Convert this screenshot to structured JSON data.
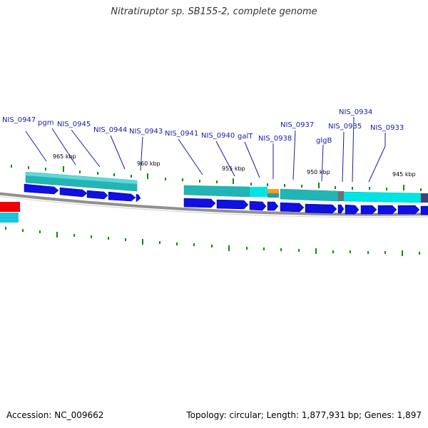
{
  "title": "Nitratiruptor sp. SB155-2, complete genome",
  "footer": {
    "accession": "Accession: NC_009662",
    "summary": "Topology: circular; Length: 1,877,931 bp; Genes: 1,897"
  },
  "colors": {
    "gene_label": "#1a1aa6",
    "cds_arrow": "#1010e0",
    "track_teal": "#20b4b4",
    "track_cyan": "#00e8e8",
    "highlight_orange": "#ffa020",
    "highlight_red": "#ee0000",
    "backbone": "#808080",
    "tick": "#118811"
  },
  "gene_labels": [
    {
      "text": "NIS_0947"
    },
    {
      "text": "pgm"
    },
    {
      "text": "NIS_0945"
    },
    {
      "text": "NIS_0944"
    },
    {
      "text": "NIS_0943"
    },
    {
      "text": "NIS_0941"
    },
    {
      "text": "NIS_0940"
    },
    {
      "text": "galT"
    },
    {
      "text": "NIS_0938"
    },
    {
      "text": "NIS_0937"
    },
    {
      "text": "glgB"
    },
    {
      "text": "NIS_0935"
    },
    {
      "text": "NIS_0934"
    },
    {
      "text": "NIS_0933"
    }
  ],
  "kbp_labels": [
    {
      "text": "965 kbp"
    },
    {
      "text": "960 kbp"
    },
    {
      "text": "955 kbp"
    },
    {
      "text": "950 kbp"
    },
    {
      "text": "945 kbp"
    }
  ]
}
